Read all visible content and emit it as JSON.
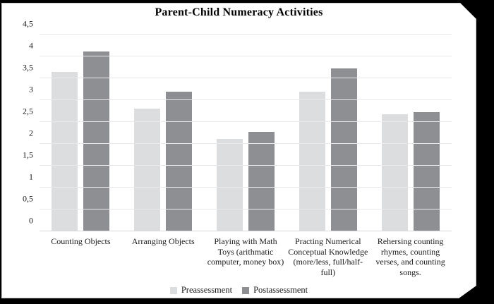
{
  "panel": {
    "background": "#ffffff",
    "frame_color": "#000000"
  },
  "chart_data": {
    "type": "bar",
    "title": "Parent-Child Numeracy Activities",
    "categories": [
      "Counting Objects",
      "Arranging Objects",
      "Playing with Math Toys (arithmatic computer, money box)",
      "Practing Numerical Conceptual Knowledge (more/less, full/half-full)",
      "Rehersing counting rhymes, counting verses, and counting songs."
    ],
    "series": [
      {
        "name": "Preassessment",
        "color": "#dcddde",
        "values": [
          3.64,
          2.8,
          2.12,
          3.2,
          2.68
        ]
      },
      {
        "name": "Postassessment",
        "color": "#8d8f92",
        "values": [
          4.12,
          3.2,
          2.28,
          3.73,
          2.72
        ]
      }
    ],
    "y_axis": {
      "min": 0,
      "max": 4.5,
      "ticks": [
        {
          "value": 0,
          "label": "0"
        },
        {
          "value": 0.5,
          "label": "0,5"
        },
        {
          "value": 1,
          "label": "1"
        },
        {
          "value": 1.5,
          "label": "1,5"
        },
        {
          "value": 2,
          "label": "2"
        },
        {
          "value": 2.5,
          "label": "2,5"
        },
        {
          "value": 3,
          "label": "3"
        },
        {
          "value": 3.5,
          "label": "3,5"
        },
        {
          "value": 4,
          "label": "4"
        },
        {
          "value": 4.5,
          "label": "4,5"
        }
      ]
    },
    "grid": "horizontal",
    "legend_position": "bottom",
    "xlabel": "",
    "ylabel": ""
  }
}
